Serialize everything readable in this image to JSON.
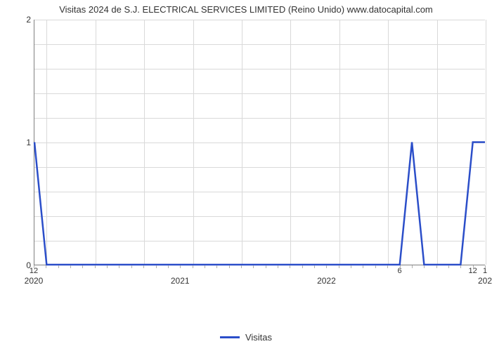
{
  "title": "Visitas 2024 de S.J. ELECTRICAL SERVICES LIMITED (Reino Unido) www.datocapital.com",
  "chart": {
    "type": "line",
    "series": {
      "name": "Visitas",
      "color": "#2b4ec9",
      "line_width": 2.5,
      "x": [
        0,
        1,
        2,
        3,
        4,
        5,
        6,
        7,
        8,
        9,
        10,
        11,
        12,
        13,
        14,
        15,
        16,
        17,
        18,
        19,
        20,
        21,
        22,
        23,
        24,
        25,
        26,
        27,
        28,
        29,
        30,
        31,
        32,
        33,
        34,
        35,
        36,
        37
      ],
      "y": [
        1,
        0,
        0,
        0,
        0,
        0,
        0,
        0,
        0,
        0,
        0,
        0,
        0,
        0,
        0,
        0,
        0,
        0,
        0,
        0,
        0,
        0,
        0,
        0,
        0,
        0,
        0,
        0,
        0,
        0,
        0,
        1,
        0,
        0,
        0,
        0,
        1,
        1
      ]
    },
    "x_top_labels": [
      {
        "x": 0,
        "text": "12"
      },
      {
        "x": 30,
        "text": "6"
      },
      {
        "x": 36,
        "text": "12"
      },
      {
        "x": 37,
        "text": "1"
      }
    ],
    "x_major_labels": [
      {
        "x": 0,
        "text": "2020"
      },
      {
        "x": 12,
        "text": "2021"
      },
      {
        "x": 24,
        "text": "2022"
      },
      {
        "x": 37,
        "text": "202"
      }
    ],
    "xlim": [
      0,
      37
    ],
    "ylim": [
      0,
      2
    ],
    "y_major_ticks": [
      0,
      1,
      2
    ],
    "y_minor_count": 10,
    "x_vgrid": [
      1,
      5,
      9,
      13,
      17,
      21,
      25,
      29,
      33,
      37
    ],
    "x_minor_ticks_every": 1,
    "background_color": "#ffffff",
    "grid_color": "#d9d9d9",
    "axis_color": "#808080",
    "title_fontsize": 13,
    "label_fontsize": 12,
    "legend_label": "Visitas"
  }
}
